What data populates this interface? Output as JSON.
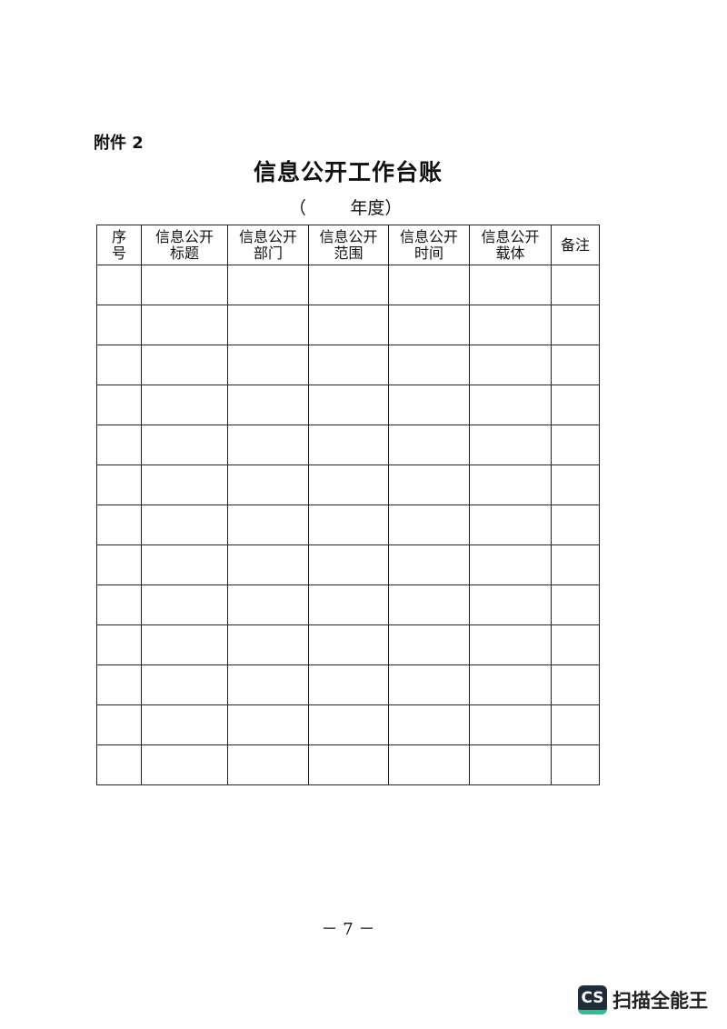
{
  "attachment_label": "附件 2",
  "title": "信息公开工作台账",
  "year_line": "（        年度）",
  "table": {
    "headers": [
      [
        "序",
        "号"
      ],
      [
        "信息公开",
        "标题"
      ],
      [
        "信息公开",
        "部门"
      ],
      [
        "信息公开",
        "范围"
      ],
      [
        "信息公开",
        "时间"
      ],
      [
        "信息公开",
        "载体"
      ],
      [
        "备注"
      ]
    ],
    "row_count": 13
  },
  "page_number": "－ 7 －",
  "watermark": {
    "icon_text": "CS",
    "brand": "扫描全能王",
    "colors": {
      "dark": "#1f2d3a",
      "accent": "#2dbf91"
    }
  }
}
